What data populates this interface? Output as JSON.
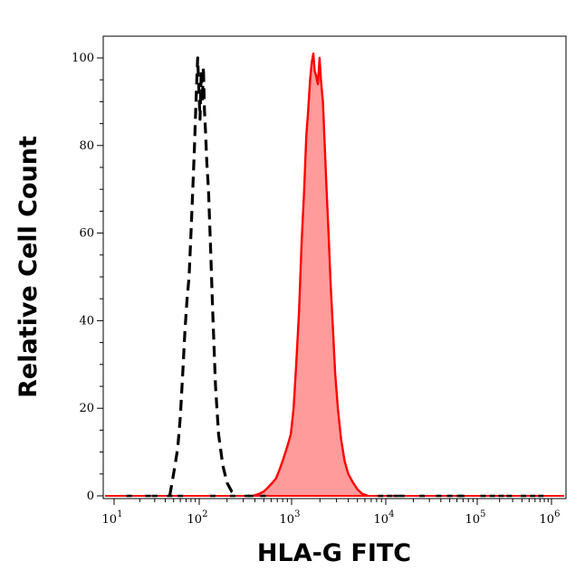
{
  "chart_data": {
    "type": "area",
    "xlabel": "HLA-G FITC",
    "ylabel": "Relative Cell Count",
    "x_scale": "log",
    "xlim": [
      10,
      1000000
    ],
    "ylim": [
      0,
      100
    ],
    "x_ticks": [
      {
        "base": "10",
        "exp": "1",
        "value": 10
      },
      {
        "base": "10",
        "exp": "2",
        "value": 100
      },
      {
        "base": "10",
        "exp": "3",
        "value": 1000
      },
      {
        "base": "10",
        "exp": "4",
        "value": 10000
      },
      {
        "base": "10",
        "exp": "5",
        "value": 100000
      },
      {
        "base": "10",
        "exp": "6",
        "value": 1000000
      }
    ],
    "y_ticks": [
      "0",
      "20",
      "40",
      "60",
      "80",
      "100"
    ],
    "grid": false,
    "series": [
      {
        "style": "dashed",
        "color": "#000000",
        "fill": "none",
        "points": [
          [
            45,
            0
          ],
          [
            48,
            3
          ],
          [
            52,
            7
          ],
          [
            56,
            11
          ],
          [
            60,
            18
          ],
          [
            64,
            28
          ],
          [
            68,
            38
          ],
          [
            72,
            45
          ],
          [
            76,
            50
          ],
          [
            80,
            60
          ],
          [
            84,
            70
          ],
          [
            88,
            80
          ],
          [
            91,
            88
          ],
          [
            94,
            96
          ],
          [
            96,
            100
          ],
          [
            99,
            93
          ],
          [
            102,
            86
          ],
          [
            105,
            97
          ],
          [
            108,
            90
          ],
          [
            111,
            98
          ],
          [
            114,
            88
          ],
          [
            117,
            83
          ],
          [
            121,
            76
          ],
          [
            126,
            70
          ],
          [
            132,
            58
          ],
          [
            140,
            42
          ],
          [
            150,
            25
          ],
          [
            162,
            14
          ],
          [
            180,
            7
          ],
          [
            200,
            3
          ],
          [
            225,
            1
          ],
          [
            260,
            0
          ]
        ]
      },
      {
        "style": "solid",
        "color": "#ff0000",
        "fill": "#ff9b9b",
        "points": [
          [
            380,
            0
          ],
          [
            450,
            0.5
          ],
          [
            500,
            1
          ],
          [
            560,
            2
          ],
          [
            620,
            3
          ],
          [
            680,
            4
          ],
          [
            740,
            6
          ],
          [
            800,
            8
          ],
          [
            860,
            10
          ],
          [
            920,
            12
          ],
          [
            980,
            14
          ],
          [
            1050,
            20
          ],
          [
            1120,
            30
          ],
          [
            1200,
            42
          ],
          [
            1280,
            58
          ],
          [
            1360,
            70
          ],
          [
            1430,
            82
          ],
          [
            1500,
            88
          ],
          [
            1570,
            95
          ],
          [
            1640,
            99
          ],
          [
            1700,
            101
          ],
          [
            1760,
            97
          ],
          [
            1820,
            96
          ],
          [
            1900,
            94
          ],
          [
            1980,
            100
          ],
          [
            2050,
            95
          ],
          [
            2150,
            90
          ],
          [
            2250,
            80
          ],
          [
            2350,
            70
          ],
          [
            2470,
            60
          ],
          [
            2600,
            48
          ],
          [
            2750,
            38
          ],
          [
            2900,
            28
          ],
          [
            3100,
            20
          ],
          [
            3350,
            13
          ],
          [
            3650,
            8
          ],
          [
            4000,
            5
          ],
          [
            4500,
            3
          ],
          [
            5000,
            1.5
          ],
          [
            5600,
            0.5
          ],
          [
            6500,
            0
          ]
        ]
      }
    ],
    "baseline_noise": [
      15,
      25,
      30,
      45,
      60,
      140,
      230,
      330,
      360,
      490,
      8800,
      11000,
      13000,
      15000,
      25000,
      38000,
      50000,
      64000,
      68000,
      120000,
      160000,
      210000,
      270000,
      420000,
      560000,
      720000
    ]
  }
}
